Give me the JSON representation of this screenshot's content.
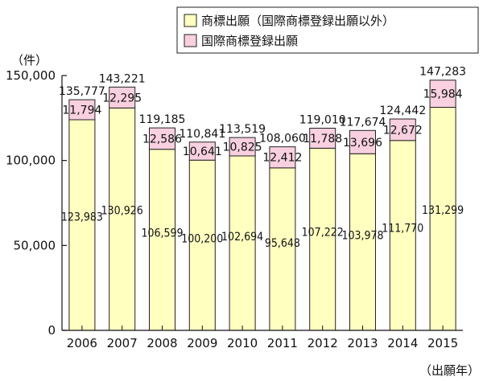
{
  "chart_data": {
    "type": "bar",
    "stacked": true,
    "title": "",
    "unit_label": "（件）",
    "xlabel": "（出願年）",
    "ylabel": "",
    "ylim": [
      0,
      150000
    ],
    "yticks": [
      "0",
      "50,000",
      "100,000",
      "150,000"
    ],
    "yticks_values": [
      0,
      50000,
      100000,
      150000
    ],
    "categories": [
      "2006",
      "2007",
      "2008",
      "2009",
      "2010",
      "2011",
      "2012",
      "2013",
      "2014",
      "2015"
    ],
    "series": [
      {
        "name": "商標出願（国際商標登録出願以外）",
        "color": "#ffffc0",
        "values": [
          123983,
          130926,
          106599,
          100200,
          102694,
          95648,
          107222,
          103978,
          111770,
          131299
        ],
        "labels": [
          "123,983",
          "130,926",
          "106,599",
          "100,200",
          "102,694",
          "95,648",
          "107,222",
          "103,978",
          "111,770",
          "131,299"
        ]
      },
      {
        "name": "国際商標登録出願",
        "color": "#f8d0e0",
        "values": [
          11794,
          12295,
          12586,
          10641,
          10825,
          12412,
          11788,
          13696,
          12672,
          15984
        ],
        "labels": [
          "11,794",
          "12,295",
          "12,586",
          "10,641",
          "10,825",
          "12,412",
          "11,788",
          "13,696",
          "12,672",
          "15,984"
        ]
      }
    ],
    "totals": [
      "135,777",
      "143,221",
      "119,185",
      "110,841",
      "113,519",
      "108,060",
      "119,010",
      "117,674",
      "124,442",
      "147,283"
    ],
    "legend_position": "top-right",
    "grid": false
  }
}
